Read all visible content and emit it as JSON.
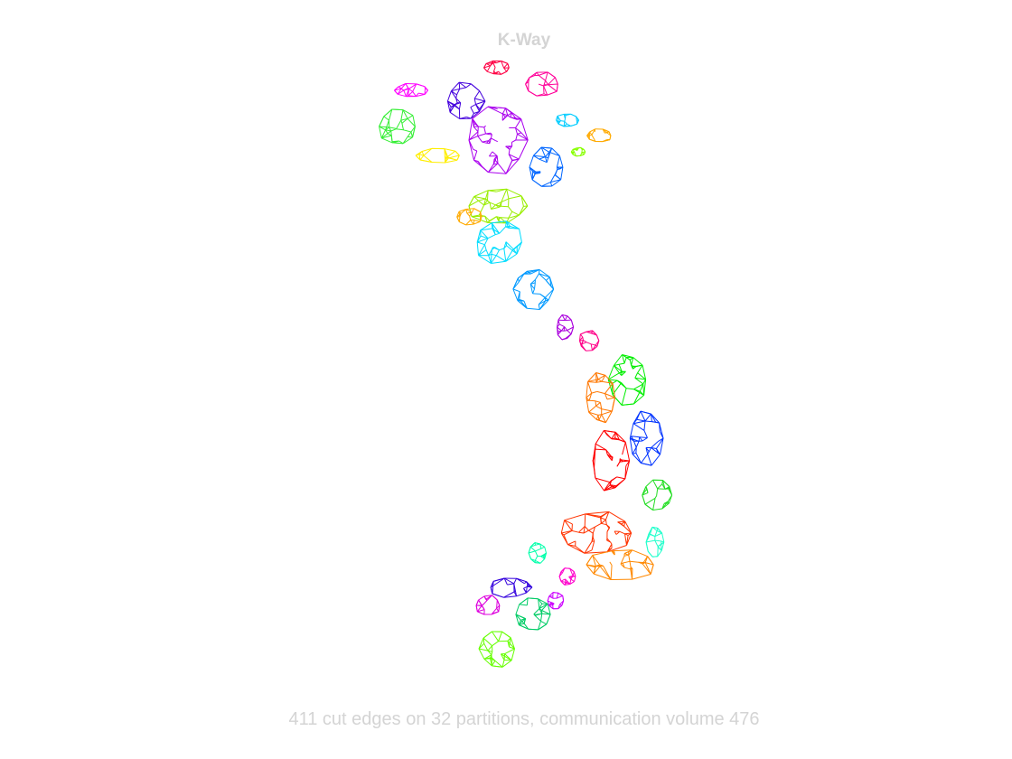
{
  "title": "K-Way",
  "caption": "411 cut edges on 32 partitions, communication volume 476",
  "partition_colors": [
    "#ff00ff",
    "#4400dd",
    "#ff0044",
    "#ff0099",
    "#00ccff",
    "#ffaa00",
    "#88ff00",
    "#33ee33",
    "#aa00ee",
    "#ffee00",
    "#0066ff",
    "#99ee00",
    "#ffaa00",
    "#00ddff",
    "#0099ff",
    "#aa00dd",
    "#ff0088",
    "#00ee00",
    "#ff7700",
    "#0033ff",
    "#ff0000",
    "#22dd22",
    "#ff3300",
    "#ff8800",
    "#22ffcc",
    "#00ffaa",
    "#ff00cc",
    "#3300dd",
    "#dd00dd",
    "#00cc66",
    "#cc00ff",
    "#66ff00"
  ]
}
